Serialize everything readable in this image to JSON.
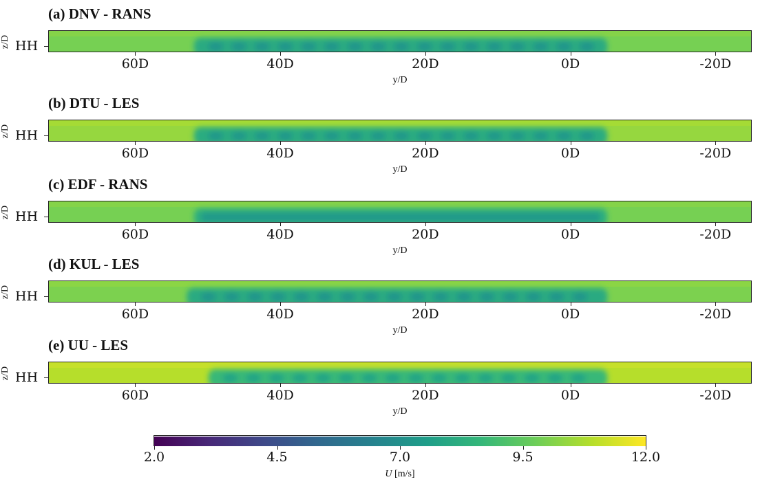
{
  "chart_data": {
    "type": "heatmap",
    "colormap": "viridis",
    "panels": [
      {
        "title": "(a) DNV - RANS",
        "free_stream": 9.9,
        "wake": 7.2,
        "wake_span": [
          -5,
          52
        ],
        "wake_rows": true
      },
      {
        "title": "(b) DTU - LES",
        "free_stream": 10.4,
        "wake": 7.3,
        "wake_span": [
          -5,
          52
        ],
        "wake_rows": true
      },
      {
        "title": "(c) EDF - RANS",
        "free_stream": 9.9,
        "wake": 7.4,
        "wake_span": [
          -5,
          52
        ],
        "wake_rows": false
      },
      {
        "title": "(d) KUL - LES",
        "free_stream": 10.0,
        "wake": 7.2,
        "wake_span": [
          -5,
          53
        ],
        "wake_rows": true
      },
      {
        "title": "(e) UU - LES",
        "free_stream": 10.9,
        "wake": 7.8,
        "wake_span": [
          -5,
          50
        ],
        "wake_rows": true
      }
    ],
    "x_ticks": [
      "60D",
      "40D",
      "20D",
      "0D",
      "-20D"
    ],
    "x_tick_values": [
      60,
      40,
      20,
      0,
      -20
    ],
    "xlim": [
      72,
      -25
    ],
    "xlabel": "y/D",
    "ylabel": "z/D",
    "y_tick": "HH",
    "colorbar": {
      "ticks": [
        "2.0",
        "4.5",
        "7.0",
        "9.5",
        "12.0"
      ],
      "range": [
        2.0,
        12.0
      ],
      "label_var": "U",
      "label_unit": " [m/s]"
    },
    "colors": {
      "viridis": [
        "#440154",
        "#482878",
        "#3e4989",
        "#31688e",
        "#26828e",
        "#1f9e89",
        "#35b779",
        "#6ece58",
        "#b5de2b",
        "#fde725"
      ]
    }
  }
}
